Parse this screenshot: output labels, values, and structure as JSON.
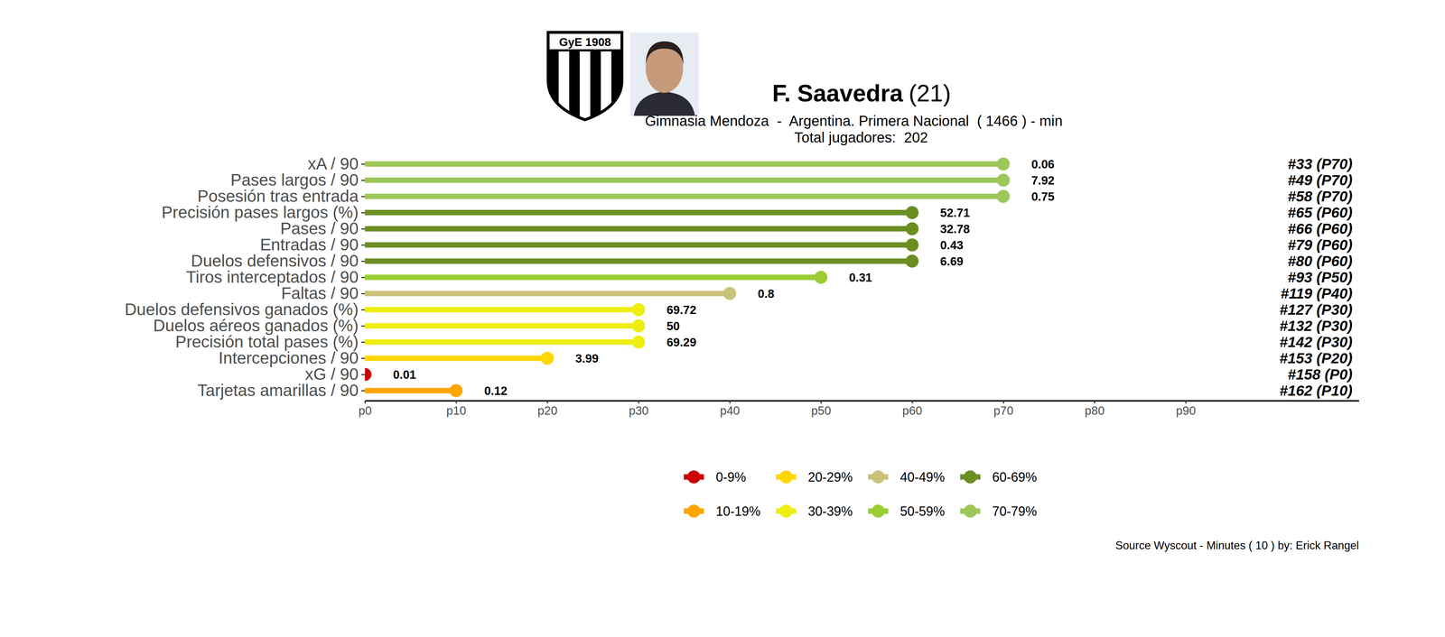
{
  "chart_data": {
    "type": "lollipop",
    "orientation": "horizontal",
    "title": "F. Saavedra",
    "title_suffix": "(21)",
    "subtitle": "Gimnasia Mendoza  -  Argentina. Primera Nacional  ( 1466 ) - min",
    "subtitle_2": "Total jugadores:  202",
    "crest_text": "GyE 1908",
    "categories": [
      "xA / 90",
      "Pases largos / 90",
      "Posesión tras entrada",
      "Precisión pases largos (%)",
      "Pases / 90",
      "Entradas / 90",
      "Duelos defensivos / 90",
      "Tiros interceptados / 90",
      "Faltas / 90",
      "Duelos defensivos ganados (%)",
      "Duelos aéreos ganados (%)",
      "Precisión total pases (%)",
      "Intercepciones / 90",
      "xG / 90",
      "Tarjetas amarillas / 90"
    ],
    "values": [
      70,
      70,
      70,
      60,
      60,
      60,
      60,
      50,
      40,
      30,
      30,
      30,
      20,
      0,
      10
    ],
    "colors": [
      "#9dc75a",
      "#9dc75a",
      "#9dc75a",
      "#6b8e23",
      "#6b8e23",
      "#6b8e23",
      "#6b8e23",
      "#9acd32",
      "#c9c27a",
      "#eeee11",
      "#eeee11",
      "#eeee11",
      "#ffd700",
      "#cc0000",
      "#ffa500"
    ],
    "metric_values": [
      0.06,
      7.92,
      0.75,
      52.71,
      32.78,
      0.43,
      6.69,
      0.31,
      0.8,
      69.72,
      50,
      69.29,
      3.99,
      0.01,
      0.12
    ],
    "rank_labels": [
      "#33 (P70)",
      "#49 (P70)",
      "#58 (P70)",
      "#65 (P60)",
      "#66 (P60)",
      "#79 (P60)",
      "#80 (P60)",
      "#93 (P50)",
      "#119 (P40)",
      "#127 (P30)",
      "#132 (P30)",
      "#142 (P30)",
      "#153 (P20)",
      "#158 (P0)",
      "#162 (P10)"
    ],
    "xlim": [
      0,
      109
    ],
    "xticks": [
      {
        "value": 0,
        "label": "p0"
      },
      {
        "value": 10,
        "label": "p10"
      },
      {
        "value": 20,
        "label": "p20"
      },
      {
        "value": 30,
        "label": "p30"
      },
      {
        "value": 40,
        "label": "p40"
      },
      {
        "value": 50,
        "label": "p50"
      },
      {
        "value": 60,
        "label": "p60"
      },
      {
        "value": 70,
        "label": "p70"
      },
      {
        "value": 80,
        "label": "p80"
      },
      {
        "value": 90,
        "label": "p90"
      }
    ],
    "legend_entries": [
      {
        "label": "0-9%",
        "color": "#cc0000"
      },
      {
        "label": "10-19%",
        "color": "#ffa500"
      },
      {
        "label": "20-29%",
        "color": "#ffd700"
      },
      {
        "label": "30-39%",
        "color": "#eeee11"
      },
      {
        "label": "40-49%",
        "color": "#c9c27a"
      },
      {
        "label": "50-59%",
        "color": "#9acd32"
      },
      {
        "label": "60-69%",
        "color": "#6b8e23"
      },
      {
        "label": "70-79%",
        "color": "#9dc75a"
      }
    ],
    "source": "Source Wyscout - Minutes ( 10 ) by: Erick Rangel"
  }
}
